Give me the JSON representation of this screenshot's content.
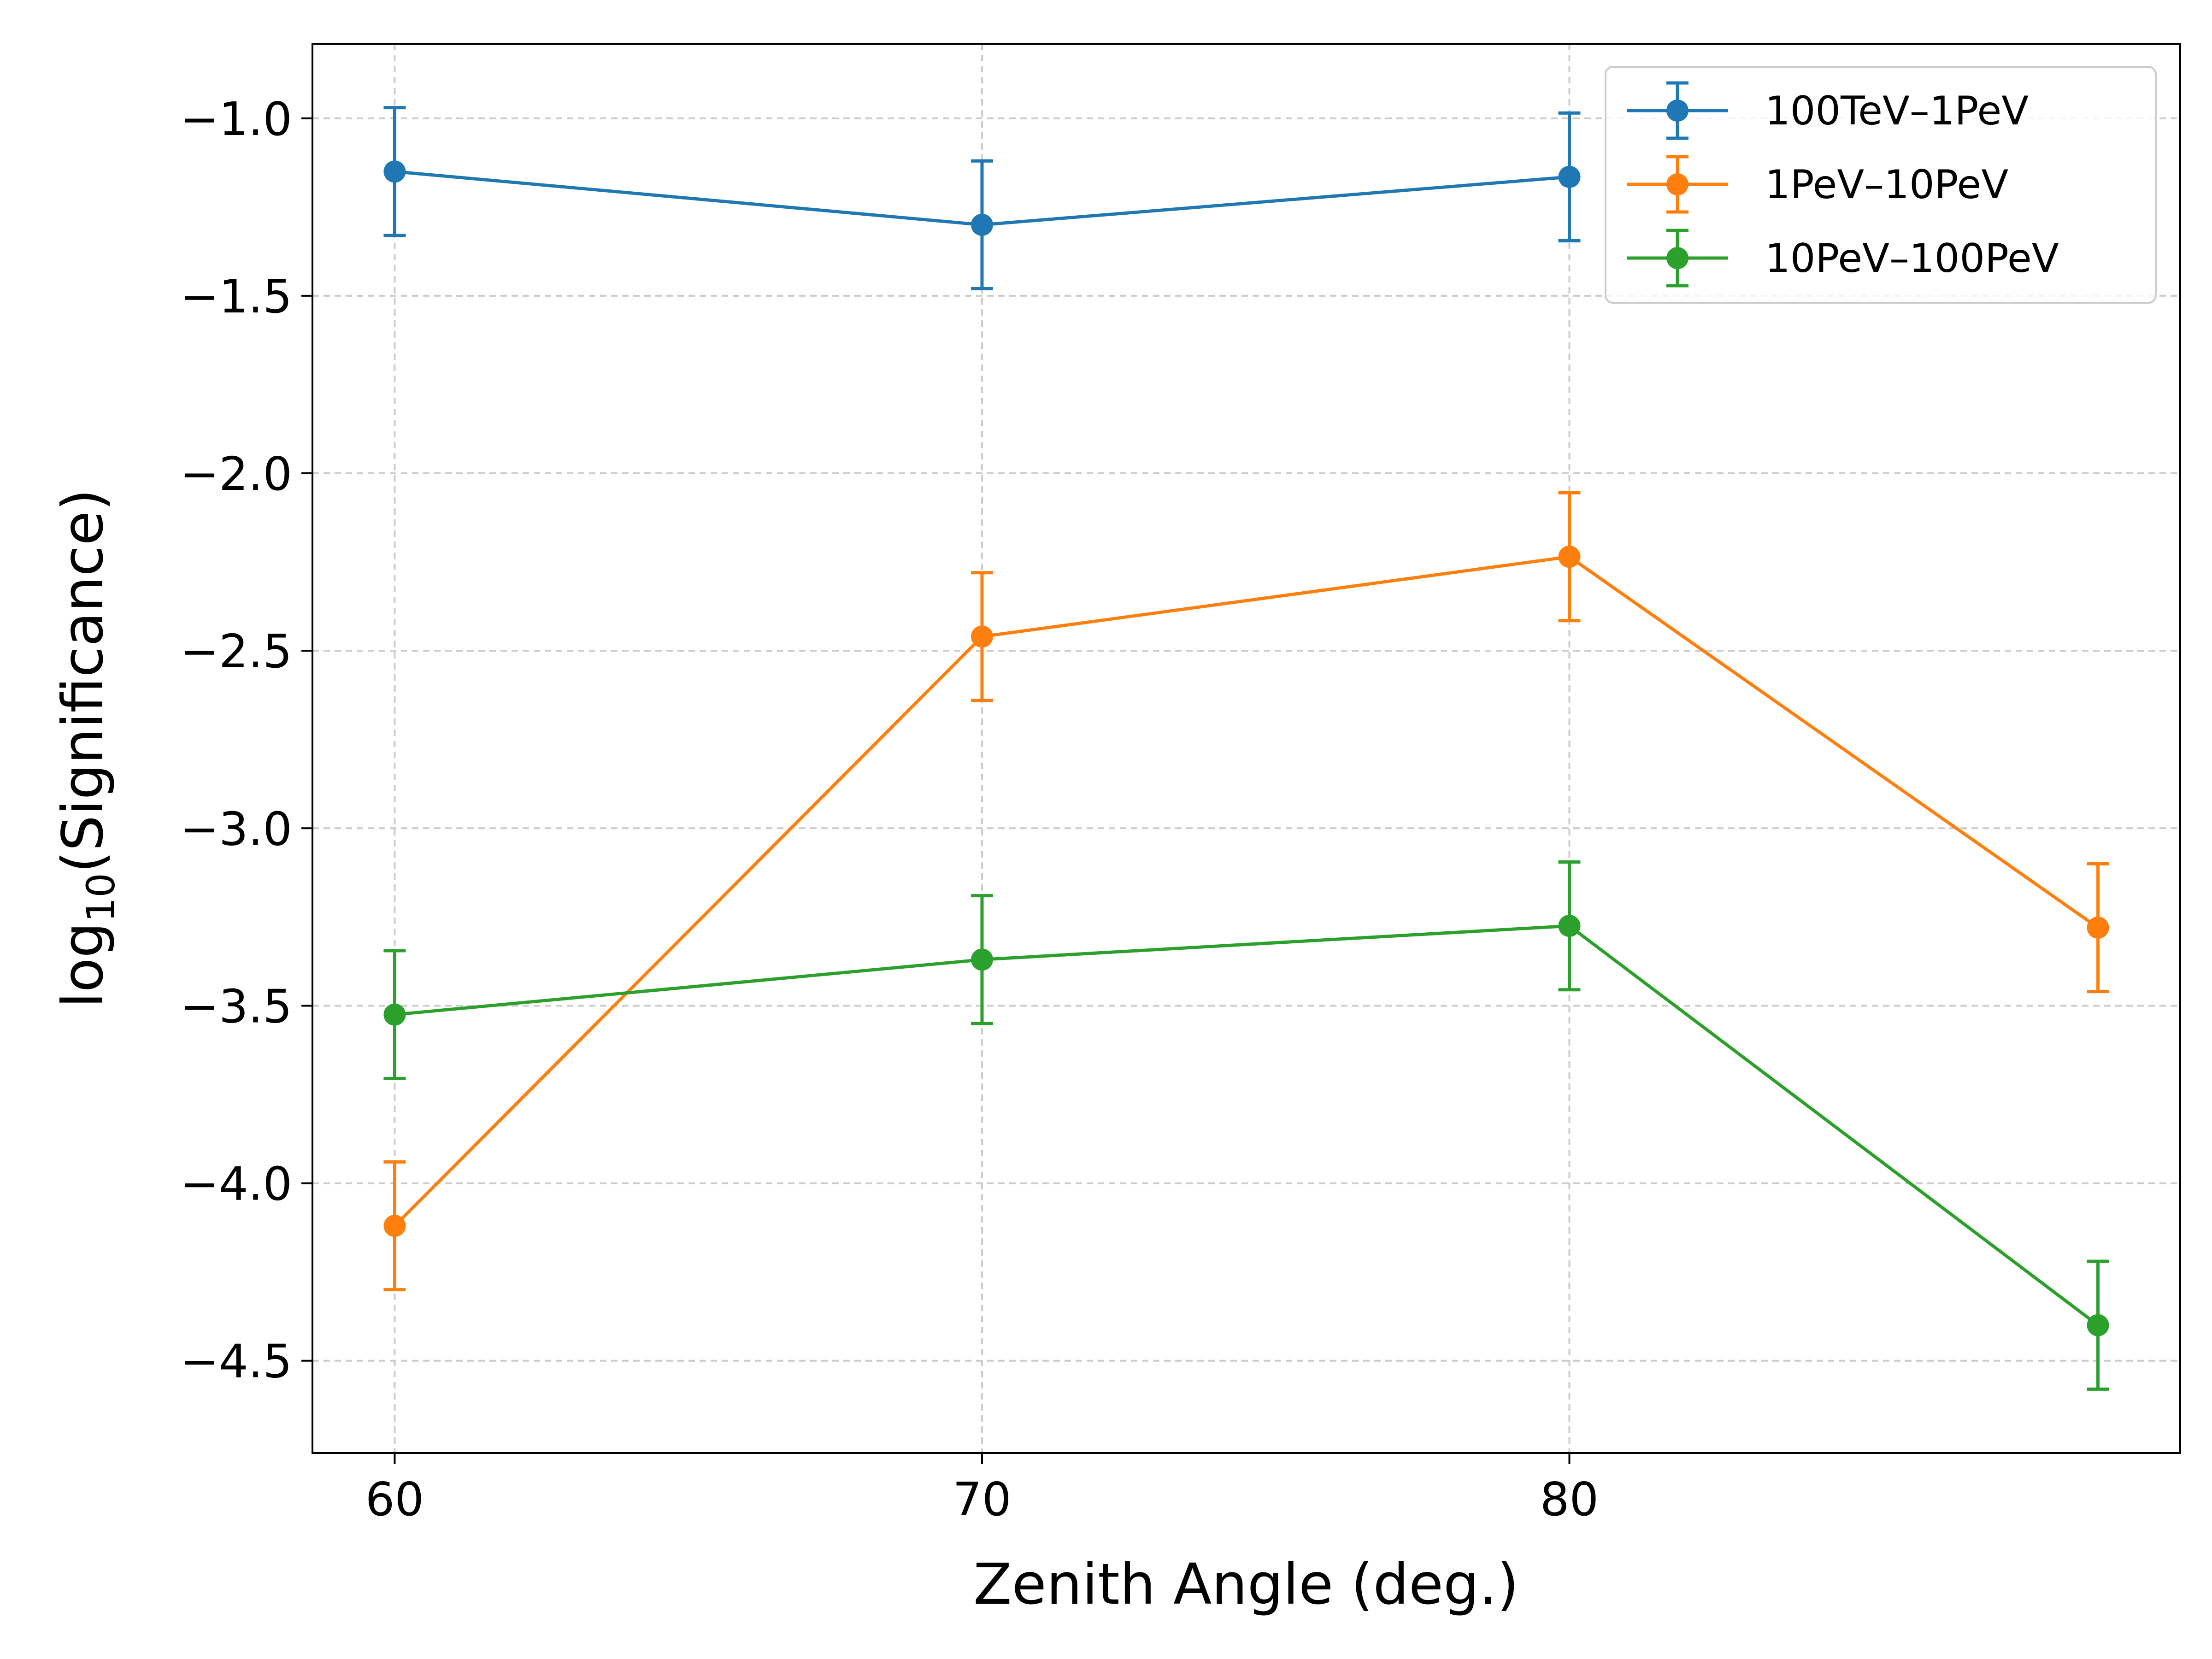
{
  "chart_data": {
    "type": "line",
    "xlabel": "Zenith Angle (deg.)",
    "ylabel_main": "log",
    "ylabel_sub": "10",
    "ylabel_rest": "(Significance)",
    "xlim": [
      58.6,
      90.4
    ],
    "ylim": [
      -4.76,
      -0.79
    ],
    "x_ticks": [
      60,
      70,
      80
    ],
    "x_tick_labels": [
      "60",
      "70",
      "80"
    ],
    "y_ticks": [
      -1.0,
      -1.5,
      -2.0,
      -2.5,
      -3.0,
      -3.5,
      -4.0,
      -4.5
    ],
    "y_tick_labels": [
      "−1.0",
      "−1.5",
      "−2.0",
      "−2.5",
      "−3.0",
      "−3.5",
      "−4.0",
      "−4.5"
    ],
    "grid": true,
    "legend_position": "top-right",
    "series": [
      {
        "name": "100TeV–1PeV",
        "color": "#1f77b4",
        "x": [
          60,
          70,
          80
        ],
        "y": [
          -1.15,
          -1.3,
          -1.165
        ],
        "yerr": [
          0.18,
          0.18,
          0.18
        ]
      },
      {
        "name": "1PeV–10PeV",
        "color": "#ff7f0e",
        "x": [
          60,
          70,
          80,
          89
        ],
        "y": [
          -4.12,
          -2.46,
          -2.235,
          -3.28
        ],
        "yerr": [
          0.18,
          0.18,
          0.18,
          0.18
        ]
      },
      {
        "name": "10PeV–100PeV",
        "color": "#2ca02c",
        "x": [
          60,
          70,
          80,
          89
        ],
        "y": [
          -3.525,
          -3.37,
          -3.275,
          -4.4
        ],
        "yerr": [
          0.18,
          0.18,
          0.18,
          0.18
        ]
      }
    ]
  }
}
